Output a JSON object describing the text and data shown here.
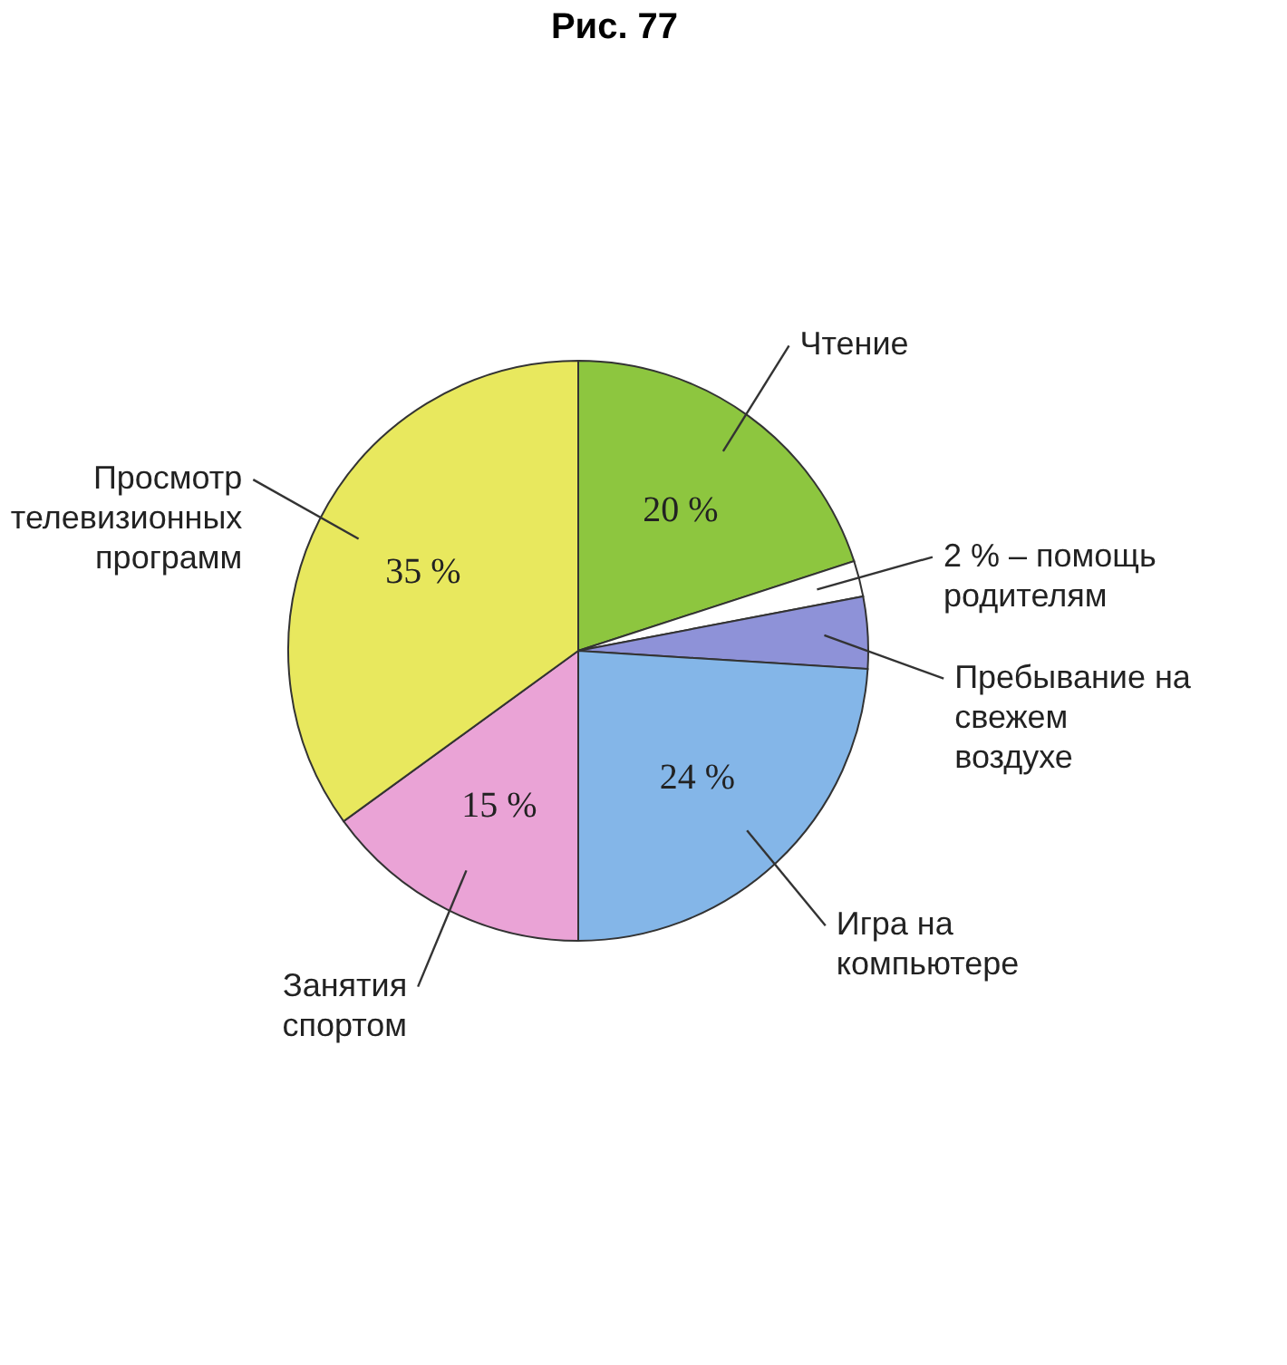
{
  "chart_data": {
    "type": "pie",
    "title": "Рис. 77",
    "categories": [
      "Чтение",
      "2 % – помощь родителям",
      "Пребывание на свежем воздухе",
      "Игра на компьютере",
      "Занятия спортом",
      "Просмотр телевизионных программ"
    ],
    "values": [
      20,
      2,
      4,
      24,
      15,
      35
    ],
    "colors": [
      "#8dc63f",
      "#ffffff",
      "#8e92d8",
      "#84b6e8",
      "#eaa3d6",
      "#e8e85e"
    ],
    "value_labels": [
      "20 %",
      null,
      null,
      "24 %",
      "15 %",
      "35 %"
    ],
    "legend": false
  }
}
